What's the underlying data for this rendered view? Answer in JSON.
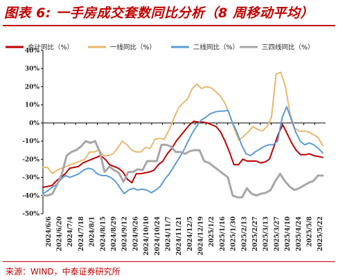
{
  "page": {
    "title": "图表 6:  一手房成交套数同比分析（8 周移动平均）",
    "source": "来源：WIND，中泰证券研究所"
  },
  "chart_data": {
    "type": "line",
    "ylim": [
      -50,
      40
    ],
    "y_ticks": [
      40,
      30,
      20,
      10,
      0,
      -10,
      -20,
      -30,
      -40,
      -50
    ],
    "y_tick_labels": [
      "40%",
      "30%",
      "20%",
      "10%",
      "0%",
      "-10%",
      "-20%",
      "-30%",
      "-40%",
      "-50%"
    ],
    "x_tick_labels": [
      "2024/6/6",
      "2024/6/20",
      "2024/7/4",
      "2024/7/18",
      "2024/8/1",
      "2024/8/15",
      "2024/8/29",
      "2024/9/12",
      "2024/9/26",
      "2024/10/10",
      "2024/10/24",
      "2024/11/7",
      "2024/11/21",
      "2024/12/5",
      "2024/12/19",
      "2025/1/2",
      "2025/1/16",
      "2025/1/30",
      "2025/2/13",
      "2025/2/27",
      "2025/3/13",
      "2025/3/27",
      "2025/4/10",
      "2025/4/24",
      "2025/5/8",
      "2025/5/22"
    ],
    "legend_position": "top",
    "grid": false,
    "series": [
      {
        "name": "合计同比（%）",
        "color": "#c00000",
        "values": [
          -35.5,
          -35,
          -34.5,
          -32,
          -30,
          -28,
          -25,
          -24.5,
          -24,
          -22,
          -21,
          -20,
          -19,
          -18,
          -20,
          -23,
          -24,
          -25,
          -27,
          -31,
          -33,
          -28,
          -28,
          -27.5,
          -27,
          -26,
          -23,
          -21,
          -17,
          -14,
          -10,
          -7,
          -4,
          -1,
          1,
          0.5,
          0.5,
          0,
          -1,
          -2,
          -5,
          -10,
          -16,
          -23,
          -23,
          -20,
          -21,
          -21,
          -21,
          -22,
          -21.5,
          -20,
          -13,
          -6,
          -1,
          -6,
          -11,
          -15,
          -17.5,
          -17.5,
          -17,
          -18,
          -18.5,
          -19
        ]
      },
      {
        "name": "一线同比（%）",
        "color": "#e8b86d",
        "values": [
          -24.5,
          -24.5,
          -28,
          -26,
          -25,
          -24,
          -23,
          -22,
          -21,
          -20,
          -16,
          -16,
          -15,
          -18,
          -18,
          -17,
          -14,
          -10,
          -12,
          -15,
          -16,
          -16,
          -13.5,
          -14,
          -9,
          -8.5,
          -9,
          -4,
          2,
          8,
          11,
          13,
          19,
          21.5,
          19,
          20,
          19.5,
          17.5,
          15,
          11,
          5,
          -3,
          -9.5,
          -7.5,
          -5,
          -2,
          -3.5,
          -4.5,
          -2,
          3,
          27,
          28,
          20,
          5,
          -3,
          -4.5,
          -4.5,
          -5,
          -6.5,
          -8,
          -12.5
        ]
      },
      {
        "name": "二线同比（%）",
        "color": "#5b9bd5",
        "values": [
          -39,
          -37.5,
          -35.5,
          -34,
          -31,
          -29,
          -30,
          -29,
          -28,
          -26,
          -25,
          -25.5,
          -28,
          -29,
          -29,
          -30,
          -32,
          -35.5,
          -39,
          -37,
          -36,
          -37,
          -36.5,
          -37,
          -38.5,
          -37,
          -35,
          -31,
          -28,
          -24,
          -20,
          -16,
          -11,
          -6,
          -2,
          1.5,
          3,
          5,
          6,
          6.5,
          6.5,
          7,
          0,
          -5,
          -12,
          -17,
          -18,
          -16,
          -14.5,
          -13,
          -12,
          -12,
          -10,
          3,
          9,
          2,
          -5,
          -10,
          -12,
          -11,
          -12,
          -14,
          -16.5
        ]
      },
      {
        "name": "三四线同比（%）",
        "color": "#a6a6a6",
        "values": [
          -40,
          -40,
          -39,
          -34,
          -28,
          -18,
          -16,
          -15,
          -13,
          -10,
          -11,
          -10,
          -16,
          -27,
          -24,
          -26,
          -27.5,
          -32.5,
          -27,
          -27,
          -25.5,
          -26,
          -21,
          -21,
          -21,
          -12,
          -12,
          -13,
          -16,
          -16,
          -17,
          -15.5,
          -15,
          -15,
          -21,
          -22,
          -24,
          -26,
          -28,
          -30,
          -40,
          -41,
          -41,
          -36,
          -39,
          -40,
          -39,
          -38.5,
          -37,
          -32,
          -28,
          -32,
          -35,
          -37,
          -36,
          -34.5,
          -33,
          -32,
          -29,
          -29
        ]
      }
    ]
  }
}
